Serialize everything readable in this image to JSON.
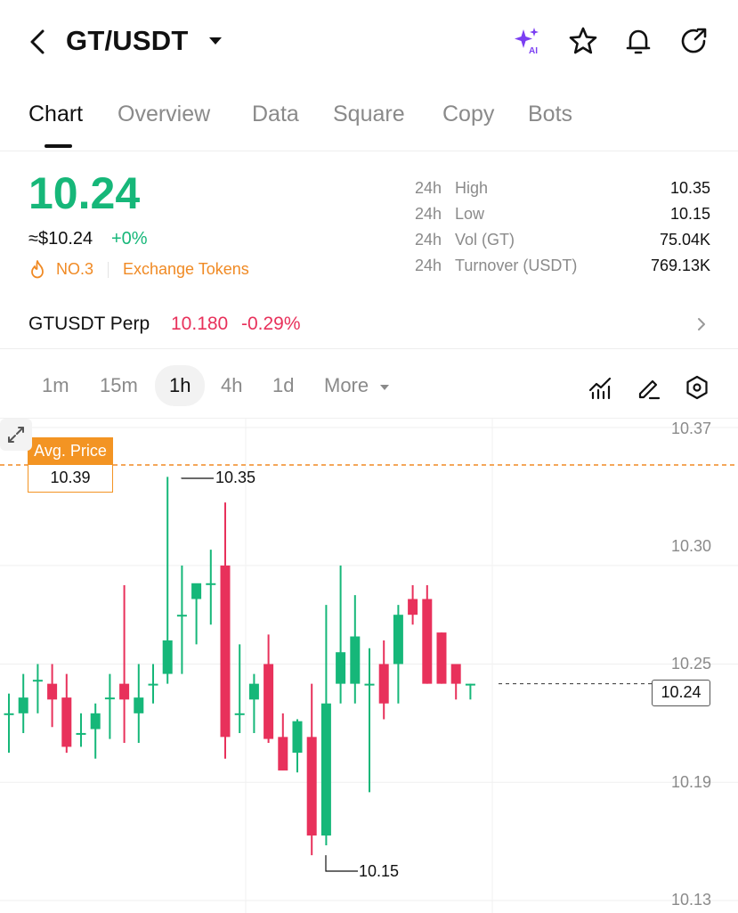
{
  "header": {
    "pair": "GT/USDT",
    "icons": [
      "back-icon",
      "caret-down-icon",
      "ai-sparkle-icon",
      "star-icon",
      "bell-icon",
      "share-icon"
    ],
    "ai_badge": "AI",
    "accent_color": "#7b3ff2"
  },
  "tabs": [
    {
      "label": "Chart",
      "active": true
    },
    {
      "label": "Overview",
      "active": false
    },
    {
      "label": "Data",
      "active": false
    },
    {
      "label": "Square",
      "active": false
    },
    {
      "label": "Copy",
      "active": false
    },
    {
      "label": "Bots",
      "active": false
    }
  ],
  "price": {
    "last": "10.24",
    "usd": "≈$10.24",
    "change": "+0%",
    "rank": "NO.3",
    "category": "Exchange Tokens",
    "up_color": "#16b779",
    "down_color": "#e8315b",
    "accent_orange": "#f08a24"
  },
  "stats": [
    {
      "period": "24h",
      "name": "High",
      "value": "10.35"
    },
    {
      "period": "24h",
      "name": "Low",
      "value": "10.15"
    },
    {
      "period": "24h",
      "name": "Vol (GT)",
      "value": "75.04K"
    },
    {
      "period": "24h",
      "name": "Turnover (USDT)",
      "value": "769.13K"
    }
  ],
  "perp": {
    "name": "GTUSDT Perp",
    "price": "10.180",
    "change": "-0.29%"
  },
  "intervals": [
    {
      "label": "1m",
      "active": false
    },
    {
      "label": "15m",
      "active": false
    },
    {
      "label": "1h",
      "active": true
    },
    {
      "label": "4h",
      "active": false
    },
    {
      "label": "1d",
      "active": false
    },
    {
      "label": "More",
      "active": false
    }
  ],
  "toolbar_icons": [
    "indicator-icon",
    "draw-pen-icon",
    "settings-hexagon-icon"
  ],
  "chart_data": {
    "type": "candlestick",
    "y_tick_labels": [
      "10.37",
      "10.30",
      "10.25",
      "10.19",
      "10.13"
    ],
    "ylim": [
      10.13,
      10.37
    ],
    "avg_price_label": "Avg. Price",
    "avg_price": "10.39",
    "current_price": "10.24",
    "high_label": "10.35",
    "low_label": "10.15",
    "candles": [
      {
        "o": 10.225,
        "h": 10.235,
        "l": 10.205,
        "c": 10.225
      },
      {
        "o": 10.225,
        "h": 10.245,
        "l": 10.215,
        "c": 10.233
      },
      {
        "o": 10.242,
        "h": 10.25,
        "l": 10.225,
        "c": 10.242
      },
      {
        "o": 10.24,
        "h": 10.25,
        "l": 10.218,
        "c": 10.232
      },
      {
        "o": 10.233,
        "h": 10.245,
        "l": 10.205,
        "c": 10.208
      },
      {
        "o": 10.215,
        "h": 10.225,
        "l": 10.208,
        "c": 10.215
      },
      {
        "o": 10.217,
        "h": 10.23,
        "l": 10.202,
        "c": 10.225
      },
      {
        "o": 10.233,
        "h": 10.245,
        "l": 10.212,
        "c": 10.233
      },
      {
        "o": 10.24,
        "h": 10.29,
        "l": 10.21,
        "c": 10.232
      },
      {
        "o": 10.225,
        "h": 10.25,
        "l": 10.21,
        "c": 10.233
      },
      {
        "o": 10.24,
        "h": 10.25,
        "l": 10.23,
        "c": 10.24
      },
      {
        "o": 10.245,
        "h": 10.345,
        "l": 10.24,
        "c": 10.262
      },
      {
        "o": 10.275,
        "h": 10.3,
        "l": 10.245,
        "c": 10.275
      },
      {
        "o": 10.283,
        "h": 10.29,
        "l": 10.26,
        "c": 10.291
      },
      {
        "o": 10.291,
        "h": 10.308,
        "l": 10.27,
        "c": 10.291
      },
      {
        "o": 10.3,
        "h": 10.332,
        "l": 10.202,
        "c": 10.213
      },
      {
        "o": 10.225,
        "h": 10.26,
        "l": 10.215,
        "c": 10.225
      },
      {
        "o": 10.232,
        "h": 10.245,
        "l": 10.215,
        "c": 10.24
      },
      {
        "o": 10.25,
        "h": 10.265,
        "l": 10.21,
        "c": 10.212
      },
      {
        "o": 10.213,
        "h": 10.225,
        "l": 10.196,
        "c": 10.196
      },
      {
        "o": 10.205,
        "h": 10.222,
        "l": 10.195,
        "c": 10.221
      },
      {
        "o": 10.213,
        "h": 10.24,
        "l": 10.153,
        "c": 10.163
      },
      {
        "o": 10.163,
        "h": 10.28,
        "l": 10.158,
        "c": 10.23
      },
      {
        "o": 10.24,
        "h": 10.3,
        "l": 10.23,
        "c": 10.256
      },
      {
        "o": 10.24,
        "h": 10.285,
        "l": 10.23,
        "c": 10.264
      },
      {
        "o": 10.24,
        "h": 10.258,
        "l": 10.185,
        "c": 10.24
      },
      {
        "o": 10.25,
        "h": 10.262,
        "l": 10.222,
        "c": 10.23
      },
      {
        "o": 10.25,
        "h": 10.28,
        "l": 10.23,
        "c": 10.275
      },
      {
        "o": 10.283,
        "h": 10.29,
        "l": 10.27,
        "c": 10.275
      },
      {
        "o": 10.283,
        "h": 10.29,
        "l": 10.24,
        "c": 10.24
      },
      {
        "o": 10.266,
        "h": 10.266,
        "l": 10.24,
        "c": 10.24
      },
      {
        "o": 10.25,
        "h": 10.25,
        "l": 10.232,
        "c": 10.24
      },
      {
        "o": 10.24,
        "h": 10.24,
        "l": 10.232,
        "c": 10.24
      }
    ]
  }
}
